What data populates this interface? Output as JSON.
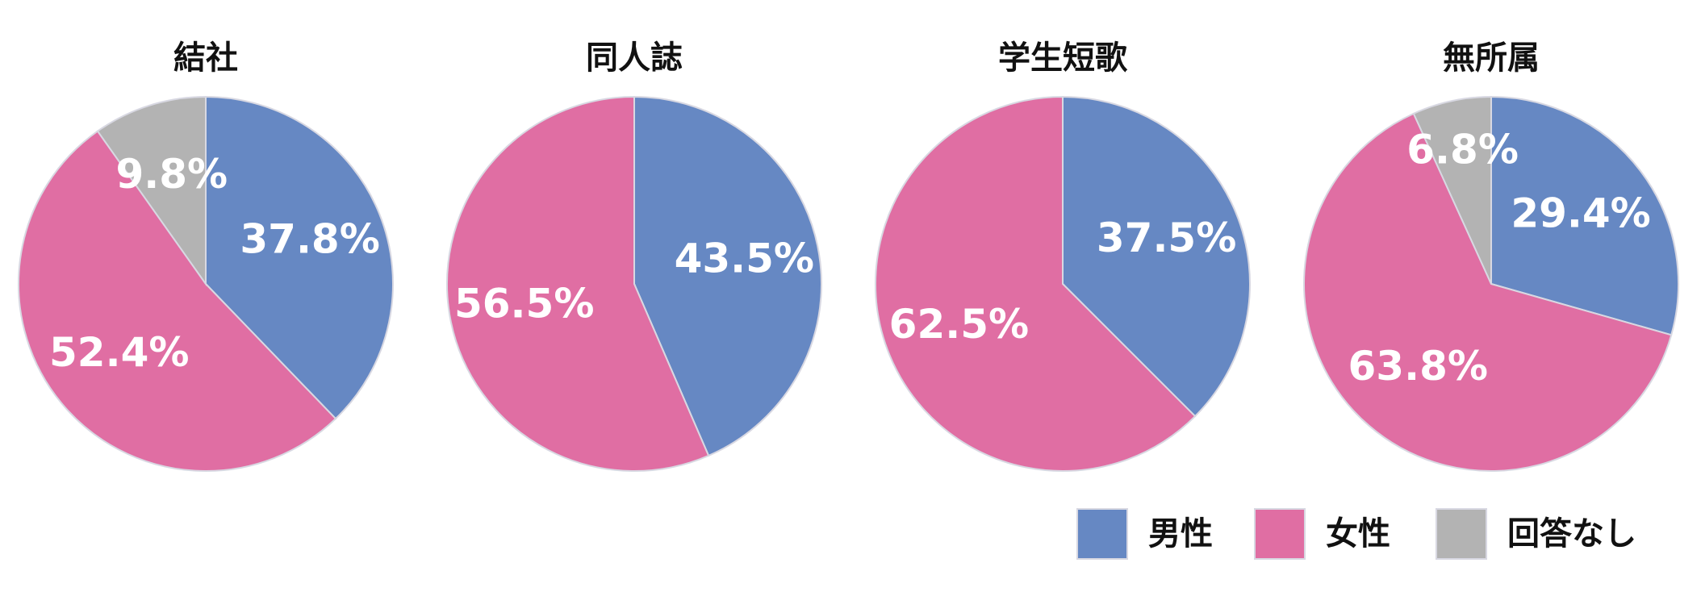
{
  "chart_data": [
    {
      "type": "pie",
      "title": "結社",
      "categories": [
        "男性",
        "女性",
        "回答なし"
      ],
      "values": [
        37.8,
        52.4,
        9.8
      ],
      "value_labels": [
        "37.8%",
        "52.4%",
        "9.8%"
      ],
      "colors": [
        "#6688c3",
        "#e06ea3",
        "#b3b3b3"
      ]
    },
    {
      "type": "pie",
      "title": "同人誌",
      "categories": [
        "男性",
        "女性"
      ],
      "values": [
        43.5,
        56.5
      ],
      "value_labels": [
        "43.5%",
        "56.5%"
      ],
      "colors": [
        "#6688c3",
        "#e06ea3"
      ]
    },
    {
      "type": "pie",
      "title": "学生短歌",
      "categories": [
        "男性",
        "女性"
      ],
      "values": [
        37.5,
        62.5
      ],
      "value_labels": [
        "37.5%",
        "62.5%"
      ],
      "colors": [
        "#6688c3",
        "#e06ea3"
      ]
    },
    {
      "type": "pie",
      "title": "無所属",
      "categories": [
        "男性",
        "女性",
        "回答なし"
      ],
      "values": [
        29.4,
        63.8,
        6.8
      ],
      "value_labels": [
        "29.4%",
        "63.8%",
        "6.8%"
      ],
      "colors": [
        "#6688c3",
        "#e06ea3",
        "#b3b3b3"
      ]
    }
  ]
}
